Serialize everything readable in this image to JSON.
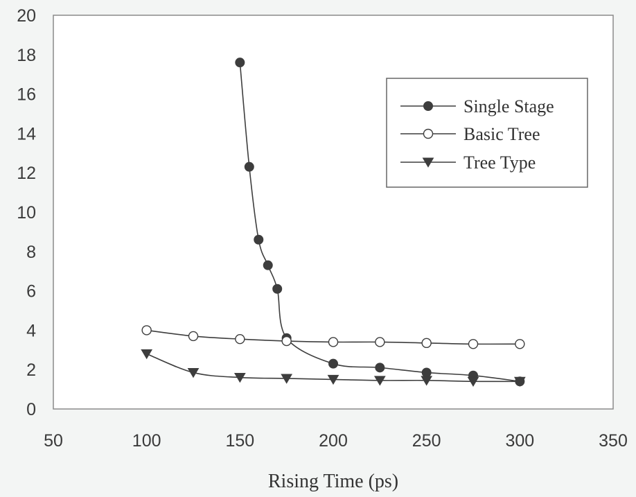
{
  "chart_data": {
    "type": "line",
    "title": "",
    "xlabel": "Rising Time (ps)",
    "ylabel": "",
    "xlim": [
      50,
      350
    ],
    "ylim": [
      0,
      20
    ],
    "xticks": [
      "50",
      "100",
      "150",
      "200",
      "250",
      "300",
      "350"
    ],
    "yticks": [
      "0",
      "2",
      "4",
      "6",
      "8",
      "10",
      "12",
      "14",
      "16",
      "18",
      "20"
    ],
    "grid": false,
    "legend": "top-right",
    "colors": {
      "line": "#3d3d3d",
      "background": "#f3f5f4",
      "frame": "#8a8a8a"
    },
    "series": [
      {
        "name": "Single Stage",
        "marker": "filled-circle",
        "x": [
          150,
          155,
          160,
          165,
          170,
          175,
          200,
          225,
          250,
          275,
          300
        ],
        "y": [
          17.6,
          12.3,
          8.6,
          7.3,
          6.1,
          3.6,
          2.3,
          2.1,
          1.85,
          1.7,
          1.4
        ]
      },
      {
        "name": "Basic Tree",
        "marker": "open-circle",
        "x": [
          100,
          125,
          150,
          175,
          200,
          225,
          250,
          275,
          300
        ],
        "y": [
          4.0,
          3.7,
          3.55,
          3.45,
          3.4,
          3.4,
          3.35,
          3.3,
          3.3
        ]
      },
      {
        "name": "Tree Type",
        "marker": "down-triangle",
        "x": [
          100,
          125,
          150,
          175,
          200,
          225,
          250,
          275,
          300
        ],
        "y": [
          2.8,
          1.85,
          1.6,
          1.55,
          1.5,
          1.45,
          1.45,
          1.4,
          1.4
        ]
      }
    ]
  }
}
